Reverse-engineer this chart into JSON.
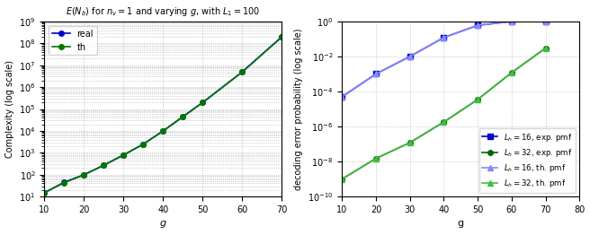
{
  "left": {
    "title": "$E(N_b)$ for $n_v = 1$ and varying $g$, with $L_1 = 100$",
    "xlabel": "$g$",
    "ylabel": "Complexity (log scale)",
    "xlim": [
      10,
      70
    ],
    "ylim": [
      10,
      1000000000.0
    ],
    "xticks": [
      10,
      20,
      30,
      40,
      50,
      60,
      70
    ],
    "g_values": [
      10,
      15,
      20,
      25,
      30,
      35,
      40,
      45,
      50,
      60,
      70
    ],
    "real_values": [
      15,
      45,
      100,
      270,
      800,
      2500,
      10000,
      45000,
      200000,
      5000000,
      200000000
    ],
    "th_values": [
      15,
      43,
      98,
      265,
      790,
      2450,
      9800,
      44000,
      195000,
      4900000,
      195000000
    ],
    "real_color": "#0000cc",
    "th_color": "#007700",
    "real_marker": "o",
    "th_marker": "o",
    "legend_real": "real",
    "legend_th": "th"
  },
  "right": {
    "xlabel": "g",
    "ylabel": "decoding error probability (log scale)",
    "xlim": [
      10,
      80
    ],
    "ylim": [
      1e-10,
      1.0
    ],
    "xticks": [
      10,
      20,
      30,
      40,
      50,
      60,
      70,
      80
    ],
    "g_values": [
      10,
      20,
      30,
      40,
      50,
      60,
      70
    ],
    "lh16_exp": [
      5e-05,
      0.001,
      0.01,
      0.12,
      0.6,
      1.0,
      1.0
    ],
    "lh32_exp": [
      1e-09,
      1.5e-08,
      1.2e-07,
      1.8e-06,
      3.5e-05,
      0.0012,
      0.03
    ],
    "lh16_th": [
      5e-05,
      0.001,
      0.01,
      0.12,
      0.6,
      1.0,
      1.0
    ],
    "lh32_th": [
      1e-09,
      1.5e-08,
      1.2e-07,
      1.8e-06,
      3.5e-05,
      0.0012,
      0.03
    ],
    "color_blue_exp": "#0000cc",
    "color_green_exp": "#006600",
    "color_blue_th": "#8888ff",
    "color_green_th": "#44bb44",
    "legend_lh16_exp": "$L_h = 16$, exp. pmf",
    "legend_lh32_exp": "$L_h = 32$, exp. pmf",
    "legend_lh16_th": "$L_h = 16$, th. pmf",
    "legend_lh32_th": "$L_h = 32$, th. pmf"
  }
}
